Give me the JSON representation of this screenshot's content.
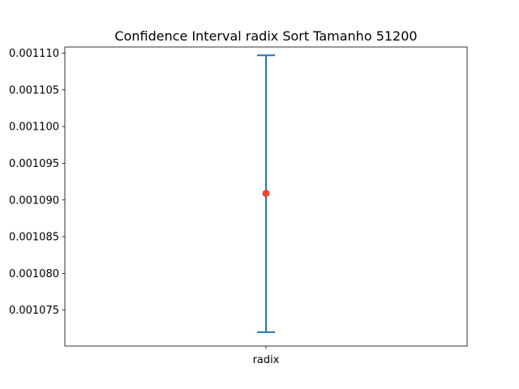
{
  "chart_data": {
    "type": "errorbar",
    "title": "Confidence Interval radix Sort Tamanho 51200",
    "xlabel": "",
    "ylabel": "",
    "categories": [
      "radix"
    ],
    "series": [
      {
        "name": "radix",
        "mean": 0.0010909,
        "lower": 0.001072,
        "upper": 0.0011097
      }
    ],
    "ylim": [
      0.00107011,
      0.00111083
    ],
    "yticks": [
      0.001075,
      0.00108,
      0.001085,
      0.00109,
      0.001095,
      0.0011,
      0.001105,
      0.00111
    ],
    "ytick_labels": [
      "0.001075",
      "0.001080",
      "0.001085",
      "0.001090",
      "0.001095",
      "0.001100",
      "0.001105",
      "0.001110"
    ],
    "grid": false,
    "colors": {
      "errorbar": "#1f77b4",
      "point": "#f44336",
      "axes": "#000000"
    }
  }
}
